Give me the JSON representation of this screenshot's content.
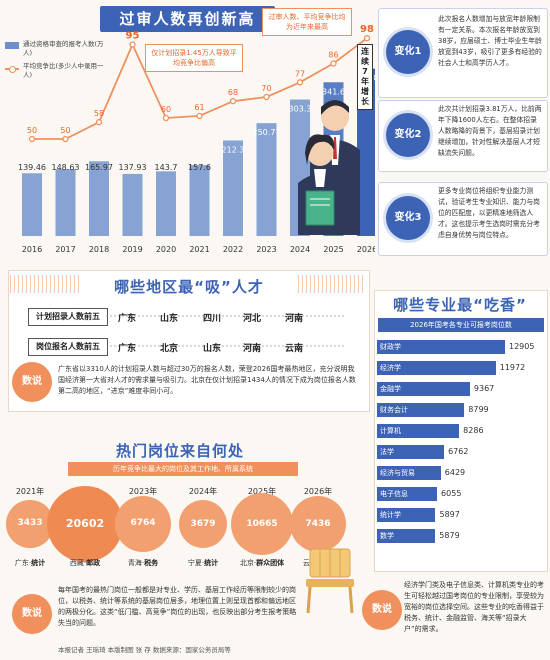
{
  "top": {
    "title": "过审人数再创新高",
    "legend_bar": "通过资格审查的报考人数(万人)",
    "legend_line": "平均竞争比(多少人中录用一人)",
    "callout_1": "仅计划招录1.45万人导致平均竞争比偏高",
    "callout_2": "过审人数、平均竞争比均为近年来最高",
    "streak_label": "连续7年增长"
  },
  "chart_data": {
    "type": "bar",
    "categories": [
      "2016",
      "2017",
      "2018",
      "2019",
      "2020",
      "2021",
      "2022",
      "2023",
      "2024",
      "2025",
      "2026"
    ],
    "series": [
      {
        "name": "通过资格审查的报考人数(万人)",
        "type": "bar",
        "values": [
          139.46,
          148.63,
          165.97,
          137.93,
          143.7,
          157.6,
          212.3,
          250.77,
          303.3,
          341.6,
          371.8
        ],
        "labels": [
          "139.46",
          "148.63",
          "165.97",
          "137.93",
          "143.7",
          "157.6",
          "212.3",
          "250.77",
          "303.3",
          "341.6",
          "371.8"
        ]
      },
      {
        "name": "平均竞争比(多少人中录用一人)",
        "type": "line",
        "values": [
          50,
          50,
          58,
          95,
          60,
          61,
          68,
          70,
          77,
          86,
          98
        ]
      }
    ],
    "ylim_bar": [
      0,
      420
    ],
    "ylim_line": [
      20,
      110
    ]
  },
  "changes": [
    {
      "tag": "变化1",
      "text": "此次报名人数增加与放宽年龄限制有一定关系。本次报名年龄放宽到38岁，应届硕士、博士毕业生年龄放宽到43岁，吸引了更多有经验的社会人士和高学历人才。"
    },
    {
      "tag": "变化2",
      "text": "此次共计划招录3.81万人，比前两年下降1600人左右。在整体招录人数略降的背景下，基层招录计划继续增加，针对性解决基层人才短缺流失问题。"
    },
    {
      "tag": "变化3",
      "text": "更多专业岗位将组织专业能力测试，验证考生专业知识、能力与岗位的匹配度，以更精准地筛选人才。这也提示考生选岗时需充分考虑自身优势与岗位特点。"
    }
  ],
  "regions": {
    "title": "哪些地区最“吸”人才",
    "plan_label": "计划招录人数前五",
    "plan": [
      "广东",
      "山东",
      "四川",
      "河北",
      "河南"
    ],
    "apply_label": "岗位报名人数前五",
    "apply": [
      "广东",
      "北京",
      "山东",
      "河南",
      "云南"
    ],
    "badge": "数说",
    "note": "广东省以3310人的计划招录人数与超过30万的报名人数，荣登2026国考最热地区，充分说明我国经济第一大省对人才的需求量与吸引力。北京在仅计划招录1434人的情况下成为岗位报名人数第二高的地区，“进京”难度非同小可。"
  },
  "majors": {
    "title": "哪些专业最“吃香”",
    "subtitle": "2026年国考各专业可报考岗位数",
    "items": [
      {
        "name": "财政学",
        "value": 12905
      },
      {
        "name": "经济学",
        "value": 11972
      },
      {
        "name": "金融学",
        "value": 9367
      },
      {
        "name": "财务会计",
        "value": 8799
      },
      {
        "name": "计算机",
        "value": 8286
      },
      {
        "name": "法学",
        "value": 6762
      },
      {
        "name": "经济与贸易",
        "value": 6429
      },
      {
        "name": "电子信息",
        "value": 6055
      },
      {
        "name": "统计学",
        "value": 5897
      },
      {
        "name": "数学",
        "value": 5879
      }
    ],
    "badge": "数说",
    "note": "经济学门类及电子信息类、计算机类专业的考生可轻松越过国考岗位的专业限制，享受较为宽裕的岗位选择空间。这些专业的吃香得益于税务、统计、金融监管、海关等“招录大户”的需求。"
  },
  "hot": {
    "title": "热门岗位来自何处",
    "subtitle": "历年竞争比最大的岗位及其工作地、所属系统",
    "items": [
      {
        "year": "2021年",
        "value": "3433",
        "place": "广东",
        "sys": "统计"
      },
      {
        "year": "2022年",
        "value": "20602",
        "place": "西藏",
        "sys": "邮政"
      },
      {
        "year": "2023年",
        "value": "6764",
        "place": "青海",
        "sys": "税务"
      },
      {
        "year": "2024年",
        "value": "3679",
        "place": "宁夏",
        "sys": "统计"
      },
      {
        "year": "2025年",
        "value": "10665",
        "place": "北京",
        "sys": "群众团体"
      },
      {
        "year": "2026年",
        "value": "7436",
        "place": "云南",
        "sys": "公安"
      }
    ],
    "badge": "数说",
    "note": "每年国考的最热门岗位一般都是对专业、学历、基层工作经历等限制较少的岗位，以税务、统计等系统的基层岗位居多，地理位置上则呈现首都和偏远地区的两极分化。这类“低门槛、高竞争”岗位的出现，也反映出部分考生报考策略失当的问题。"
  },
  "footer": "本报记者 王瑶琦 本版制图 张 存 数据来源：国家公务员局等"
}
